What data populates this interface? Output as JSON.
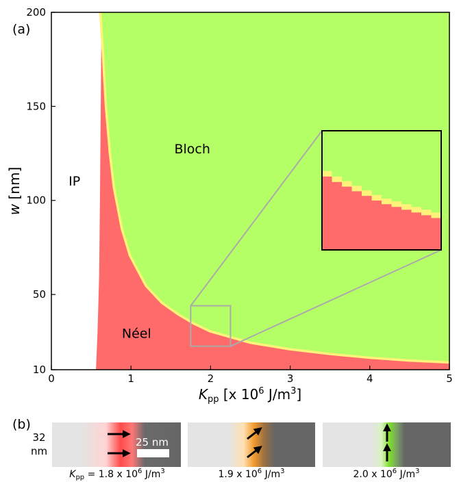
{
  "chart_data": {
    "type": "heatmap",
    "panel_label": "(a)",
    "xlabel_main": "K",
    "xlabel_sub": "pp",
    "xlabel_rest": " [x 10",
    "xlabel_exp": "6",
    "xlabel_end": " J/m",
    "xlabel_exp2": "3",
    "xlabel_close": "]",
    "ylabel_main": "w",
    "ylabel_rest": " [nm]",
    "xlim": [
      0,
      5
    ],
    "ylim": [
      10,
      200
    ],
    "xticks": [
      0,
      1,
      2,
      3,
      4,
      5
    ],
    "yticks": [
      10,
      50,
      100,
      150,
      200
    ],
    "x_tick_labels": [
      "0",
      "1",
      "2",
      "3",
      "4",
      "5"
    ],
    "y_tick_labels": [
      "10",
      "50",
      "100",
      "150",
      "200"
    ],
    "regions": [
      {
        "name": "IP",
        "label": "IP",
        "color": "#ffffff",
        "label_at": [
          0.29,
          108
        ]
      },
      {
        "name": "Bloch",
        "label": "Bloch",
        "color": "#b5ff66",
        "label_at": [
          1.77,
          125
        ]
      },
      {
        "name": "Néel",
        "label": "Néel",
        "color": "#ff6b6b",
        "label_at": [
          1.07,
          27
        ]
      }
    ],
    "ip_boundary": [
      {
        "w": 10,
        "k": 0.56
      },
      {
        "w": 30,
        "k": 0.58
      },
      {
        "w": 60,
        "k": 0.6
      },
      {
        "w": 100,
        "k": 0.61
      },
      {
        "w": 150,
        "k": 0.62
      },
      {
        "w": 200,
        "k": 0.63
      }
    ],
    "neel_bloch_boundary": [
      {
        "k": 0.63,
        "w": 200
      },
      {
        "k": 0.66,
        "w": 180
      },
      {
        "k": 0.7,
        "w": 150
      },
      {
        "k": 0.75,
        "w": 125
      },
      {
        "k": 0.8,
        "w": 107
      },
      {
        "k": 0.9,
        "w": 85
      },
      {
        "k": 1.0,
        "w": 71
      },
      {
        "k": 1.2,
        "w": 55
      },
      {
        "k": 1.4,
        "w": 46
      },
      {
        "k": 1.6,
        "w": 40
      },
      {
        "k": 1.8,
        "w": 35
      },
      {
        "k": 2.0,
        "w": 31
      },
      {
        "k": 2.5,
        "w": 25
      },
      {
        "k": 3.0,
        "w": 21.5
      },
      {
        "k": 3.5,
        "w": 19
      },
      {
        "k": 4.0,
        "w": 17
      },
      {
        "k": 4.5,
        "w": 15.5
      },
      {
        "k": 5.0,
        "w": 14.5
      }
    ],
    "zoom_box": {
      "k": [
        1.75,
        2.25
      ],
      "w": [
        22.5,
        44
      ]
    },
    "inset": {
      "outline_color": "#000000",
      "connector_color": "#aaaaaa"
    },
    "colors": {
      "neel": "#ff6b6b",
      "bloch": "#b5ff66",
      "transition": "#fff27a",
      "ip": "#ffffff"
    }
  },
  "panel_b": {
    "label": "(b)",
    "height_label_top": "32",
    "height_label_bottom": "nm",
    "scale_bar_label": "25 nm",
    "walls": [
      {
        "name": "neel",
        "color": "#ff5a5a",
        "arrow_angle_deg": 0,
        "caption_main": "K",
        "caption_sub": "pp",
        "caption_rest": " = 1.8 x 10",
        "caption_exp": "6",
        "caption_end": " J/m",
        "caption_exp2": "3"
      },
      {
        "name": "intermediate",
        "color": "#f4a43a",
        "arrow_angle_deg": -40,
        "caption_main": "",
        "caption_sub": "",
        "caption_rest": "1.9 x 10",
        "caption_exp": "6",
        "caption_end": " J/m",
        "caption_exp2": "3"
      },
      {
        "name": "bloch",
        "color": "#8ee23a",
        "arrow_angle_deg": -90,
        "caption_main": "",
        "caption_sub": "",
        "caption_rest": "2.0 x 10",
        "caption_exp": "6",
        "caption_end": " J/m",
        "caption_exp2": "3"
      }
    ]
  }
}
